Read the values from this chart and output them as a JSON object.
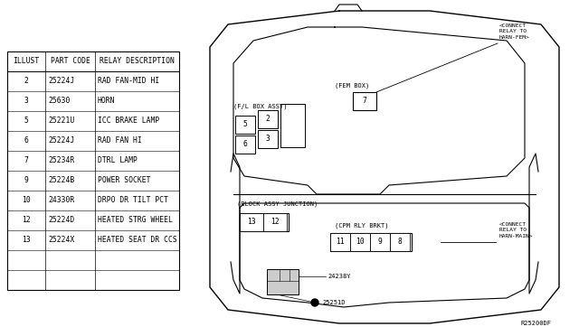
{
  "table": {
    "headers": [
      "ILLUST",
      "PART CODE",
      "RELAY DESCRIPTION"
    ],
    "rows": [
      [
        "2",
        "25224J",
        "RAD FAN-MID HI"
      ],
      [
        "3",
        "25630",
        "HORN"
      ],
      [
        "5",
        "25221U",
        "ICC BRAKE LAMP"
      ],
      [
        "6",
        "25224J",
        "RAD FAN HI"
      ],
      [
        "7",
        "25234R",
        "DTRL LAMP"
      ],
      [
        "9",
        "25224B",
        "POWER SOCKET"
      ],
      [
        "10",
        "24330R",
        "DRPO DR TILT PCT"
      ],
      [
        "12",
        "25224D",
        "HEATED STRG WHEEL"
      ],
      [
        "13",
        "25224X",
        "HEATED SEAT DR CCS"
      ],
      [
        "",
        "",
        ""
      ],
      [
        "",
        "",
        ""
      ]
    ]
  },
  "labels": {
    "fl_box_assy": "(F/L BOX ASSY)",
    "fem_box": "(FEM BOX)",
    "connect_harn_fem": "<CONNECT\nRELAY TO\nHARN-FEM>",
    "block_assy": "(BLOCK ASSY JUNCTION)",
    "cpm_rly": "(CPM RLY BRKT)",
    "connect_harn_main": "<CONNECT\nRELAY TO\nHARN-MAIN>",
    "ref1": "24238Y",
    "ref2": "25251D",
    "drawing_no": "R25200DF"
  }
}
